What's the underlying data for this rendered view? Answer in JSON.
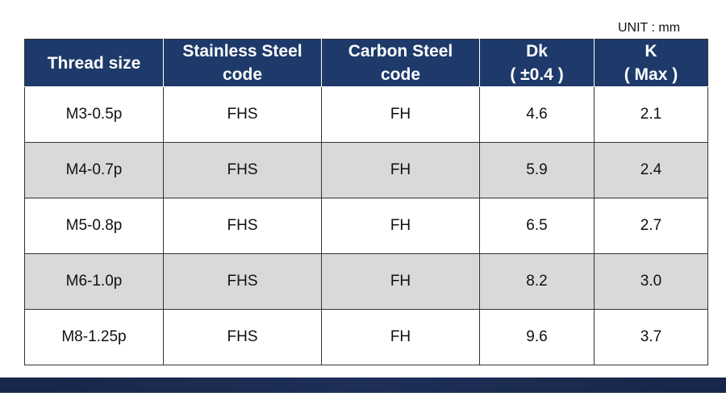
{
  "unit": "UNIT : mm",
  "table": {
    "header": [
      [
        "Thread size"
      ],
      [
        "Stainless Steel",
        "code"
      ],
      [
        "Carbon Steel",
        "code"
      ],
      [
        "Dk",
        "( ±0.4 )"
      ],
      [
        "K",
        "( Max )"
      ]
    ],
    "rows": [
      [
        "M3-0.5p",
        "FHS",
        "FH",
        "4.6",
        "2.1"
      ],
      [
        "M4-0.7p",
        "FHS",
        "FH",
        "5.9",
        "2.4"
      ],
      [
        "M5-0.8p",
        "FHS",
        "FH",
        "6.5",
        "2.7"
      ],
      [
        "M6-1.0p",
        "FHS",
        "FH",
        "8.2",
        "3.0"
      ],
      [
        "M8-1.25p",
        "FHS",
        "FH",
        "9.6",
        "3.7"
      ]
    ]
  }
}
